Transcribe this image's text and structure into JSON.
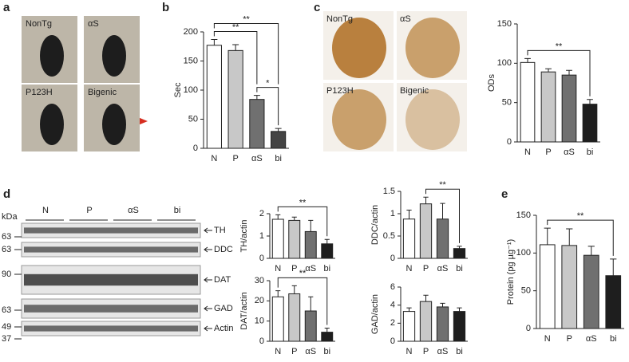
{
  "panels": {
    "labels": [
      "a",
      "b",
      "c",
      "d",
      "e"
    ],
    "a": {
      "photos": [
        "NonTg",
        "αS",
        "P123H",
        "Bigenic"
      ]
    },
    "c": {
      "photos": [
        "NonTg",
        "αS",
        "P123H",
        "Bigenic"
      ]
    },
    "d": {
      "unit": "kDa",
      "lanes": [
        "N",
        "P",
        "αS",
        "bi"
      ],
      "blots": [
        {
          "name": "TH",
          "markers": [
            63
          ]
        },
        {
          "name": "DDC",
          "markers": [
            63
          ]
        },
        {
          "name": "DAT",
          "markers": [
            90
          ]
        },
        {
          "name": "GAD",
          "markers": [
            63
          ]
        },
        {
          "name": "Actin",
          "markers": [
            49,
            37
          ]
        }
      ]
    }
  },
  "chart_data": [
    {
      "type": "bar",
      "ylabel": "Sec",
      "categories": [
        "N",
        "P",
        "αS",
        "bi"
      ],
      "values": [
        177,
        168,
        84,
        29
      ],
      "errors": [
        10,
        10,
        7,
        5
      ],
      "colors": [
        "#ffffff",
        "#c8c8c8",
        "#707070",
        "#444444"
      ],
      "ylim": [
        0,
        200
      ],
      "yticks": [
        0,
        50,
        100,
        150,
        200
      ],
      "brackets": [
        {
          "label": "*",
          "between": [
            "αS",
            "bi"
          ]
        },
        {
          "label": "**",
          "between": [
            "N",
            "αS"
          ]
        },
        {
          "label": "**",
          "between": [
            "N",
            "bi"
          ]
        }
      ]
    },
    {
      "type": "bar",
      "ylabel": "ODs",
      "categories": [
        "N",
        "P",
        "αS",
        "bi"
      ],
      "values": [
        101,
        89,
        85,
        48
      ],
      "errors": [
        5,
        4,
        6,
        6
      ],
      "colors": [
        "#ffffff",
        "#c8c8c8",
        "#707070",
        "#1e1e1e"
      ],
      "ylim": [
        0,
        150
      ],
      "yticks": [
        0,
        50,
        100,
        150
      ],
      "brackets": [
        {
          "label": "**",
          "between": [
            "N",
            "bi"
          ]
        }
      ]
    },
    {
      "type": "bar",
      "ylabel": "TH/actin",
      "categories": [
        "N",
        "P",
        "αS",
        "bi"
      ],
      "values": [
        1.75,
        1.7,
        1.2,
        0.65
      ],
      "errors": [
        0.2,
        0.15,
        0.5,
        0.2
      ],
      "colors": [
        "#ffffff",
        "#c8c8c8",
        "#707070",
        "#1e1e1e"
      ],
      "ylim": [
        0,
        2
      ],
      "yticks": [
        0,
        1,
        2
      ],
      "brackets": [
        {
          "label": "**",
          "between": [
            "N",
            "bi"
          ]
        }
      ]
    },
    {
      "type": "bar",
      "ylabel": "DDC/actin",
      "categories": [
        "N",
        "P",
        "αS",
        "bi"
      ],
      "values": [
        0.88,
        1.22,
        0.88,
        0.22
      ],
      "errors": [
        0.2,
        0.15,
        0.35,
        0.05
      ],
      "colors": [
        "#ffffff",
        "#c8c8c8",
        "#707070",
        "#1e1e1e"
      ],
      "ylim": [
        0,
        1.5
      ],
      "yticks": [
        0,
        0.5,
        1,
        1.5
      ],
      "brackets": [
        {
          "label": "**",
          "between": [
            "P",
            "bi"
          ]
        }
      ]
    },
    {
      "type": "bar",
      "ylabel": "DAT/actin",
      "categories": [
        "N",
        "P",
        "αS",
        "bi"
      ],
      "values": [
        22,
        23.5,
        15,
        4.5
      ],
      "errors": [
        3,
        4,
        7,
        2
      ],
      "colors": [
        "#ffffff",
        "#c8c8c8",
        "#707070",
        "#1e1e1e"
      ],
      "ylim": [
        0,
        30
      ],
      "yticks": [
        0,
        10,
        20,
        30
      ],
      "brackets": [
        {
          "label": "**",
          "between": [
            "N",
            "bi"
          ]
        }
      ]
    },
    {
      "type": "bar",
      "ylabel": "GAD/actin",
      "categories": [
        "N",
        "P",
        "αS",
        "bi"
      ],
      "values": [
        3.3,
        4.4,
        3.8,
        3.3
      ],
      "errors": [
        0.4,
        0.7,
        0.4,
        0.4
      ],
      "colors": [
        "#ffffff",
        "#c8c8c8",
        "#707070",
        "#1e1e1e"
      ],
      "ylim": [
        0,
        6
      ],
      "yticks": [
        0,
        2,
        4,
        6
      ],
      "brackets": []
    },
    {
      "type": "bar",
      "ylabel": "Protein (pg µg⁻¹)",
      "categories": [
        "N",
        "P",
        "αS",
        "bi"
      ],
      "values": [
        111,
        110,
        97,
        70
      ],
      "errors": [
        22,
        22,
        12,
        22
      ],
      "colors": [
        "#ffffff",
        "#c8c8c8",
        "#707070",
        "#1e1e1e"
      ],
      "ylim": [
        0,
        150
      ],
      "yticks": [
        0,
        50,
        100,
        150
      ],
      "brackets": [
        {
          "label": "**",
          "between": [
            "N",
            "bi"
          ]
        }
      ]
    }
  ]
}
